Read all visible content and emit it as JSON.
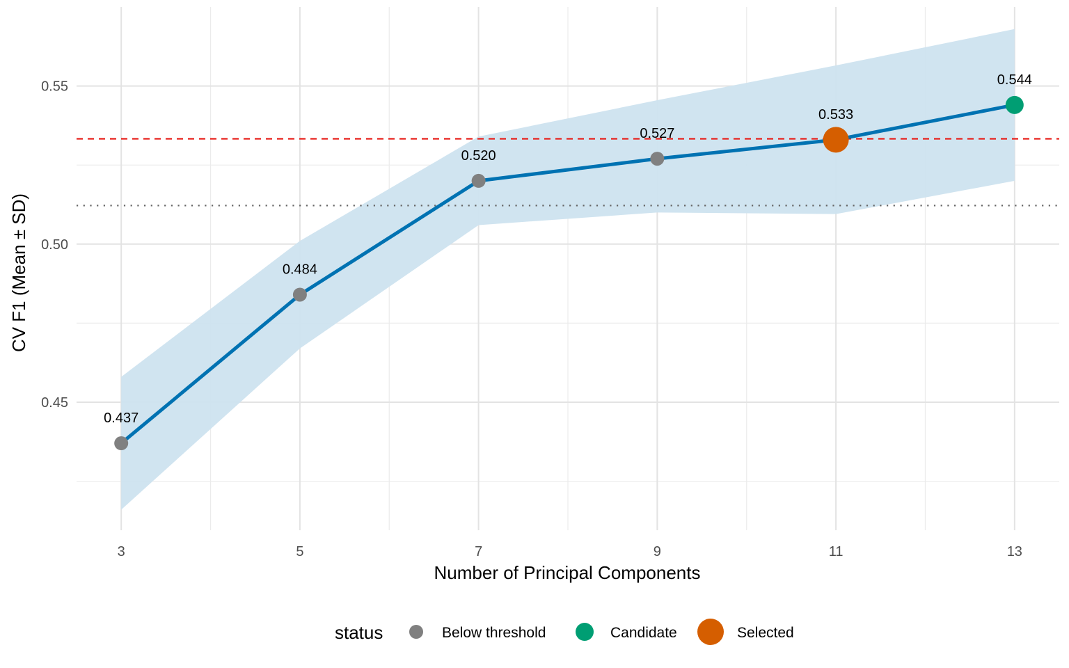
{
  "chart_data": {
    "type": "line",
    "title": "",
    "xlabel": "Number of Principal Components",
    "ylabel": "CV F1 (Mean ± SD)",
    "x": [
      3,
      5,
      7,
      9,
      11,
      13
    ],
    "mean": [
      0.437,
      0.484,
      0.52,
      0.527,
      0.533,
      0.544
    ],
    "sd_lower": [
      0.416,
      0.467,
      0.506,
      0.51,
      0.5095,
      0.52
    ],
    "sd_upper": [
      0.458,
      0.501,
      0.534,
      0.5455,
      0.5565,
      0.568
    ],
    "data_labels": [
      "0.437",
      "0.484",
      "0.520",
      "0.527",
      "0.533",
      "0.544"
    ],
    "status": [
      "Below threshold",
      "Below threshold",
      "Below threshold",
      "Below threshold",
      "Selected",
      "Candidate"
    ],
    "xlim": [
      2.5,
      13.5
    ],
    "ylim": [
      0.4095,
      0.575
    ],
    "x_ticks": [
      3,
      5,
      7,
      9,
      11,
      13
    ],
    "x_tick_labels": [
      "3",
      "5",
      "7",
      "9",
      "11",
      "13"
    ],
    "y_ticks": [
      0.45,
      0.5,
      0.55
    ],
    "y_tick_labels": [
      "0.45",
      "0.50",
      "0.55"
    ],
    "reference_lines": [
      {
        "style": "dashed",
        "color": "#e8211c",
        "y": 0.5333
      },
      {
        "style": "dotted",
        "color": "#666666",
        "y": 0.5122
      }
    ],
    "grid": true,
    "legend": {
      "title": "status",
      "position": "bottom",
      "entries": [
        {
          "label": "Below threshold",
          "color": "#808080"
        },
        {
          "label": "Candidate",
          "color": "#009e73"
        },
        {
          "label": "Selected",
          "color": "#d55e00"
        }
      ]
    },
    "colors": {
      "line": "#0072b2",
      "ribbon": "#cde3ef",
      "Below threshold": "#808080",
      "Candidate": "#009e73",
      "Selected": "#d55e00"
    }
  }
}
